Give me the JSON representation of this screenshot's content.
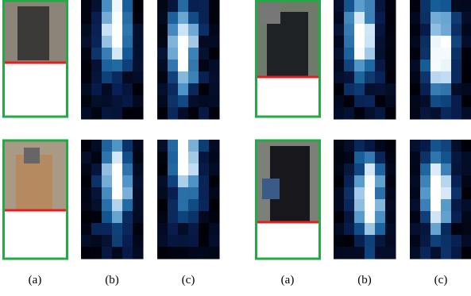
{
  "captions": [
    "(a)",
    "(b)",
    "(c)",
    "(a)",
    "(b)",
    "(c)"
  ]
}
